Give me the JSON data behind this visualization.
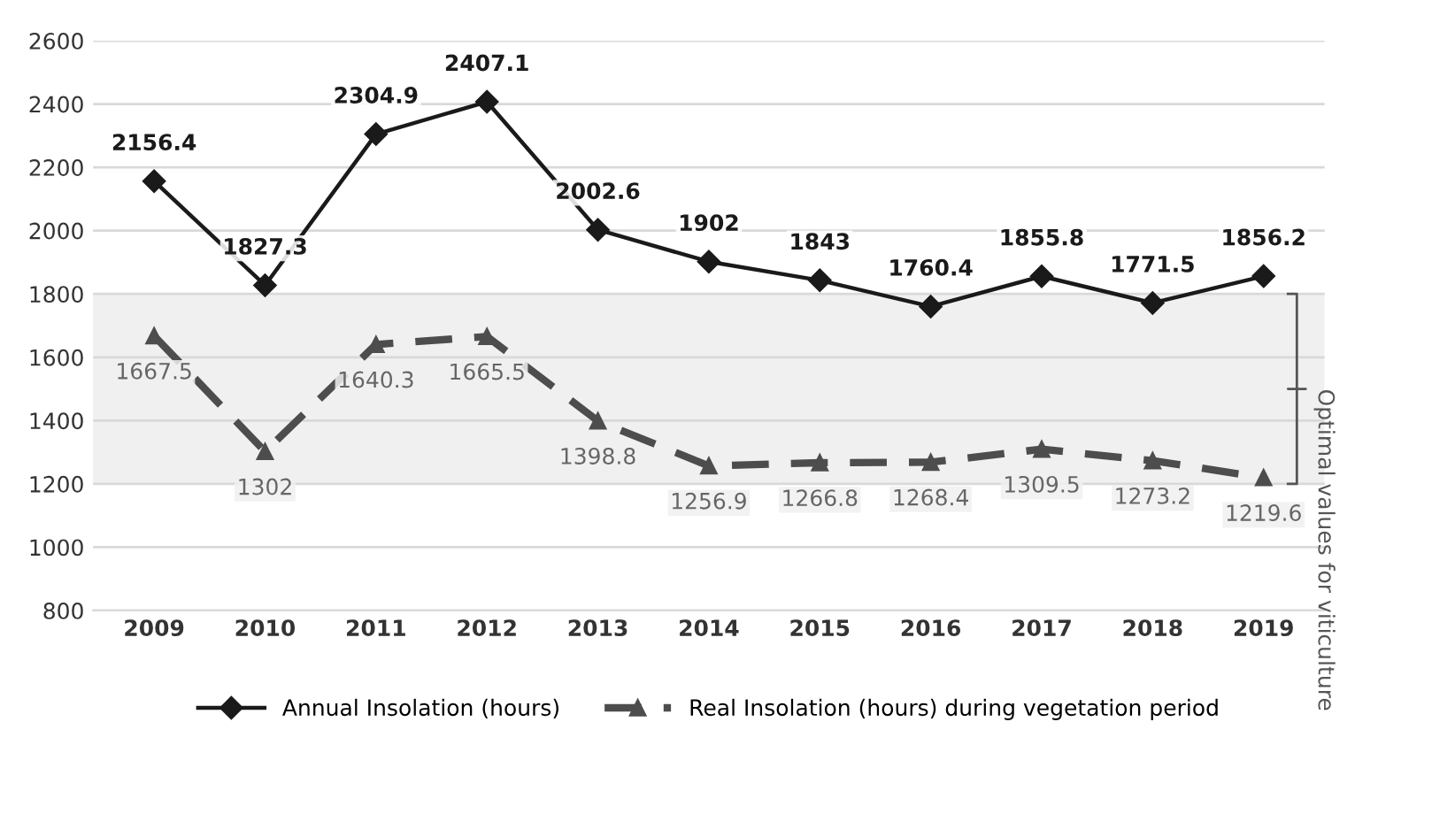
{
  "chart_data": {
    "type": "line",
    "categories": [
      "2009",
      "2010",
      "2011",
      "2012",
      "2013",
      "2014",
      "2015",
      "2016",
      "2017",
      "2018",
      "2019"
    ],
    "series": [
      {
        "name": "Annual Insolation (hours)",
        "color": "#1a1a1a",
        "marker": "diamond",
        "line_style": "solid",
        "values": [
          2156.4,
          1827.3,
          2304.9,
          2407.1,
          2002.6,
          1902,
          1843,
          1760.4,
          1855.8,
          1771.5,
          1856.2
        ]
      },
      {
        "name": "Real Insolation (hours) during vegetation period",
        "color": "#4d4d4d",
        "marker": "triangle",
        "line_style": "dashed",
        "values": [
          1667.5,
          1302,
          1640.3,
          1665.5,
          1398.8,
          1256.9,
          1266.8,
          1268.4,
          1309.5,
          1273.2,
          1219.6
        ]
      }
    ],
    "ylim": [
      800,
      2600
    ],
    "yticks": [
      800,
      1000,
      1200,
      1400,
      1600,
      1800,
      2000,
      2200,
      2400,
      2600
    ],
    "bands": [
      {
        "axis": "y",
        "from": 1200,
        "to": 1800,
        "label": "Optimal values for viticulture",
        "color": "#f0f0f0"
      }
    ],
    "grid": "y",
    "legend": "bottom",
    "data_labels": true
  }
}
